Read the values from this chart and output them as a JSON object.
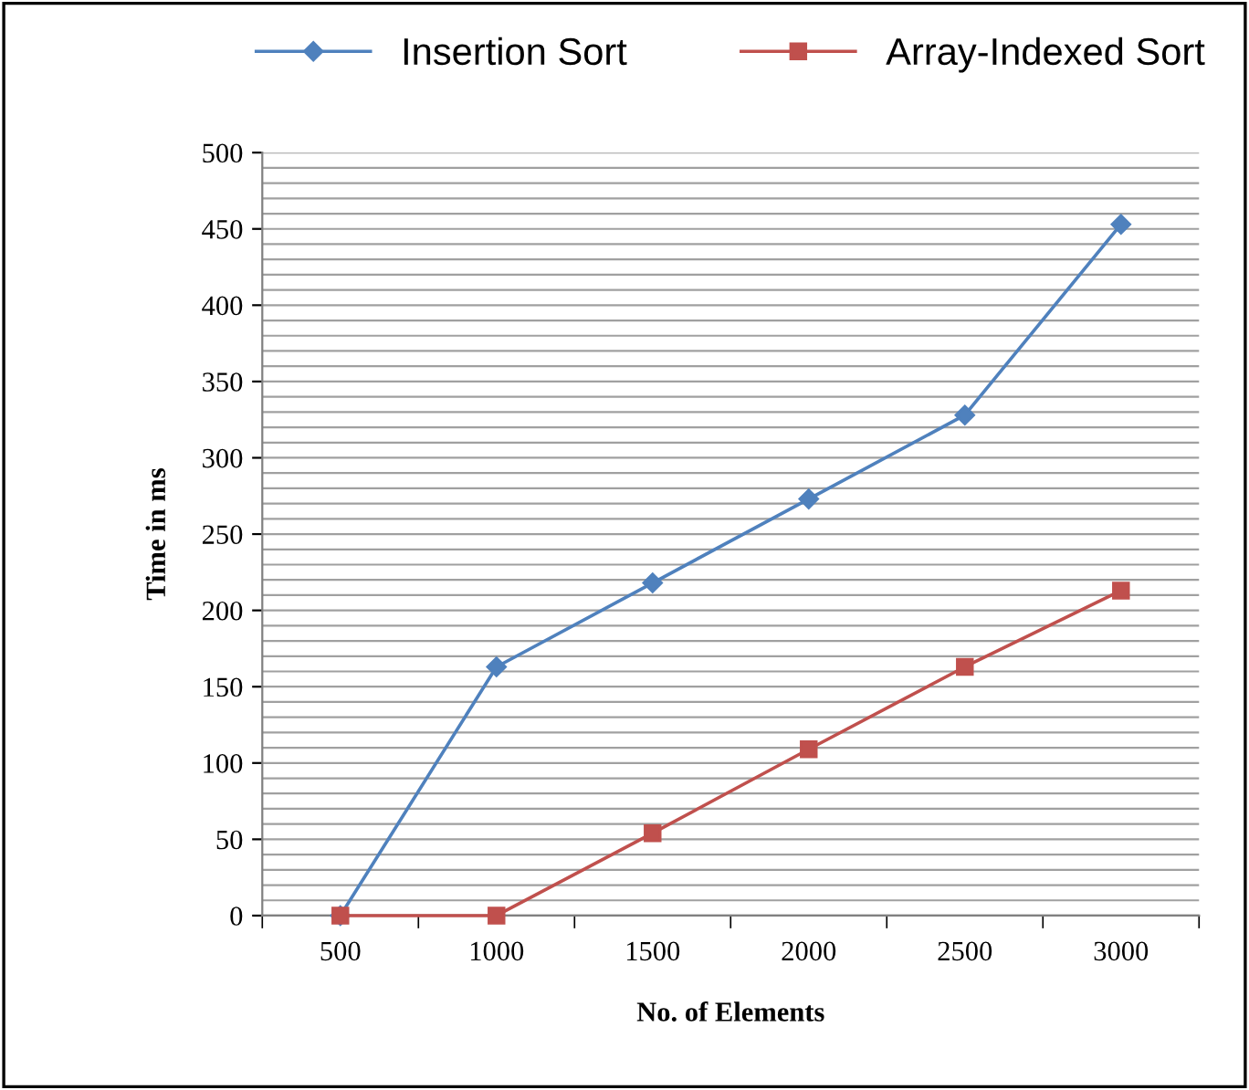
{
  "chart_data": {
    "type": "line",
    "xlabel": "No. of Elements",
    "ylabel": "Time in ms",
    "categories": [
      "500",
      "1000",
      "1500",
      "2000",
      "2500",
      "3000"
    ],
    "series": [
      {
        "name": "Insertion Sort",
        "color": "#4f81bd",
        "marker": "diamond",
        "values": [
          0,
          163,
          218,
          273,
          328,
          453
        ]
      },
      {
        "name": "Array-Indexed Sort",
        "color": "#c0504d",
        "marker": "square",
        "values": [
          0,
          0,
          54,
          109,
          163,
          213
        ]
      }
    ],
    "ylim": [
      0,
      500
    ],
    "yticks": [
      0,
      {
        "value": 10,
        "label": null
      },
      {
        "value": 20,
        "label": null
      },
      {
        "value": 30,
        "label": null
      },
      {
        "value": 40,
        "label": null
      },
      50,
      {
        "value": 60,
        "label": null
      },
      {
        "value": 70,
        "label": null
      },
      {
        "value": 80,
        "label": null
      },
      {
        "value": 90,
        "label": null
      },
      100,
      {
        "value": 110,
        "label": null
      },
      {
        "value": 120,
        "label": null
      },
      {
        "value": 130,
        "label": null
      },
      {
        "value": 140,
        "label": null
      },
      150,
      {
        "value": 160,
        "label": null
      },
      {
        "value": 170,
        "label": null
      },
      {
        "value": 180,
        "label": null
      },
      {
        "value": 190,
        "label": null
      },
      200,
      {
        "value": 210,
        "label": null
      },
      {
        "value": 220,
        "label": null
      },
      {
        "value": 230,
        "label": null
      },
      {
        "value": 240,
        "label": null
      },
      250,
      {
        "value": 260,
        "label": null
      },
      {
        "value": 270,
        "label": null
      },
      {
        "value": 280,
        "label": null
      },
      {
        "value": 290,
        "label": null
      },
      300,
      {
        "value": 310,
        "label": null
      },
      {
        "value": 320,
        "label": null
      },
      {
        "value": 330,
        "label": null
      },
      {
        "value": 340,
        "label": null
      },
      350,
      {
        "value": 360,
        "label": null
      },
      {
        "value": 370,
        "label": null
      },
      {
        "value": 380,
        "label": null
      },
      {
        "value": 390,
        "label": null
      },
      400,
      {
        "value": 410,
        "label": null
      },
      {
        "value": 420,
        "label": null
      },
      {
        "value": 430,
        "label": null
      },
      {
        "value": 440,
        "label": null
      },
      450,
      {
        "value": 460,
        "label": null
      },
      {
        "value": 470,
        "label": null
      },
      {
        "value": 480,
        "label": null
      },
      {
        "value": 490,
        "label": null
      },
      500
    ],
    "grid": "y",
    "legend": "top",
    "line_style": "solid"
  }
}
